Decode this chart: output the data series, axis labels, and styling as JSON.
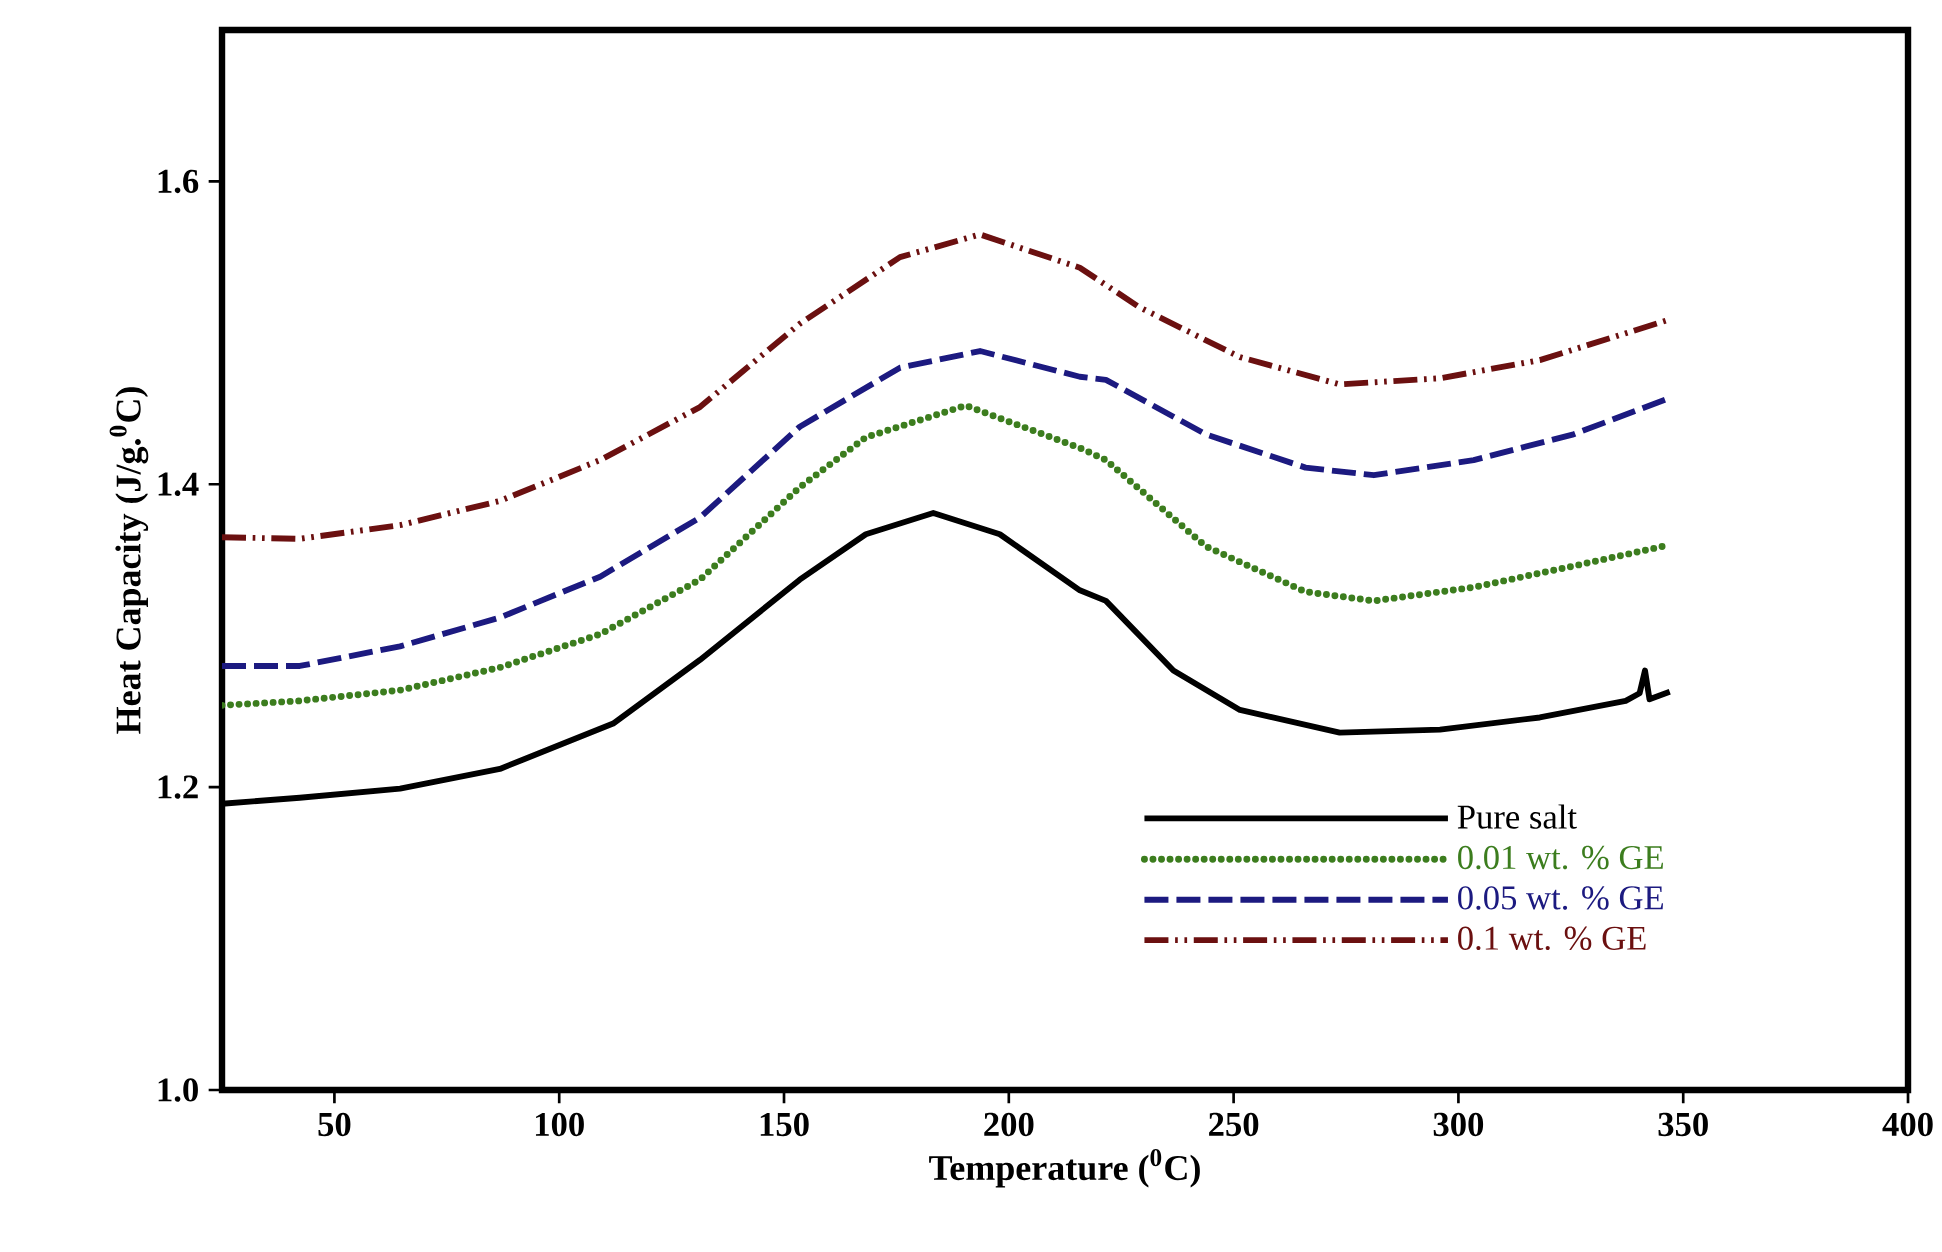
{
  "chart_data": {
    "type": "line",
    "xlabel": "Temperature ($^{0}$C)",
    "ylabel": "Heat Capacity (J/g.$^{0}$C)",
    "xlim": [
      25,
      400
    ],
    "ylim": [
      1.0,
      1.7
    ],
    "xticks": [
      50,
      100,
      150,
      200,
      250,
      300,
      350,
      400
    ],
    "yticks": [
      {
        "value": 1.0,
        "label": "1.0"
      },
      1.2,
      1.4,
      1.6
    ],
    "grid": false,
    "legend": "bottom right",
    "marker": "none",
    "series": [
      {
        "name": "Pure salt",
        "color": "#000000",
        "line_style": "solid",
        "x": [
          25,
          42.3,
          64.6,
          86.8,
          100.2,
          112,
          131.3,
          153.5,
          168.2,
          183.2,
          198,
          215.8,
          221.6,
          236.6,
          251.4,
          273.6,
          295.9,
          318.1,
          337.2,
          340.3,
          341.5,
          342.5,
          347
        ],
        "values": [
          1.189,
          1.193,
          1.199,
          1.212,
          1.228,
          1.242,
          1.284,
          1.337,
          1.367,
          1.381,
          1.367,
          1.33,
          1.323,
          1.277,
          1.251,
          1.236,
          1.238,
          1.246,
          1.257,
          1.262,
          1.277,
          1.258,
          1.263
        ]
      },
      {
        "name": "0.01 wt. % GE",
        "color": "#3c7d1e",
        "line_style": "dotted",
        "x": [
          25,
          42.3,
          64.6,
          86.8,
          109.1,
          131.3,
          153.5,
          168.2,
          190.4,
          215.8,
          221.6,
          243.8,
          266,
          281.2,
          303.4,
          325.6,
          347
        ],
        "values": [
          1.254,
          1.257,
          1.264,
          1.279,
          1.301,
          1.337,
          1.398,
          1.431,
          1.452,
          1.424,
          1.416,
          1.359,
          1.329,
          1.323,
          1.332,
          1.346,
          1.36
        ]
      },
      {
        "name": "0.05 wt. % GE",
        "color": "#1c1a80",
        "line_style": "dashed",
        "x": [
          25,
          42.3,
          64.6,
          86.8,
          109.1,
          131.3,
          153.5,
          175.8,
          193.6,
          215.8,
          221.6,
          243.8,
          266,
          281.2,
          303.4,
          325.6,
          346.1
        ],
        "values": [
          1.28,
          1.28,
          1.293,
          1.312,
          1.339,
          1.378,
          1.438,
          1.477,
          1.488,
          1.471,
          1.469,
          1.433,
          1.411,
          1.406,
          1.416,
          1.433,
          1.456
        ]
      },
      {
        "name": "0.1 wt. % GE",
        "color": "#6b1010",
        "line_style": "dashdotdotted",
        "x": [
          25,
          42.3,
          64.6,
          86.8,
          109.1,
          131.3,
          153.5,
          175.8,
          193.6,
          215.8,
          229,
          251.4,
          273.6,
          295.9,
          318.1,
          346.1
        ],
        "values": [
          1.365,
          1.364,
          1.373,
          1.389,
          1.416,
          1.451,
          1.506,
          1.55,
          1.565,
          1.543,
          1.517,
          1.484,
          1.466,
          1.47,
          1.482,
          1.508
        ]
      }
    ]
  }
}
